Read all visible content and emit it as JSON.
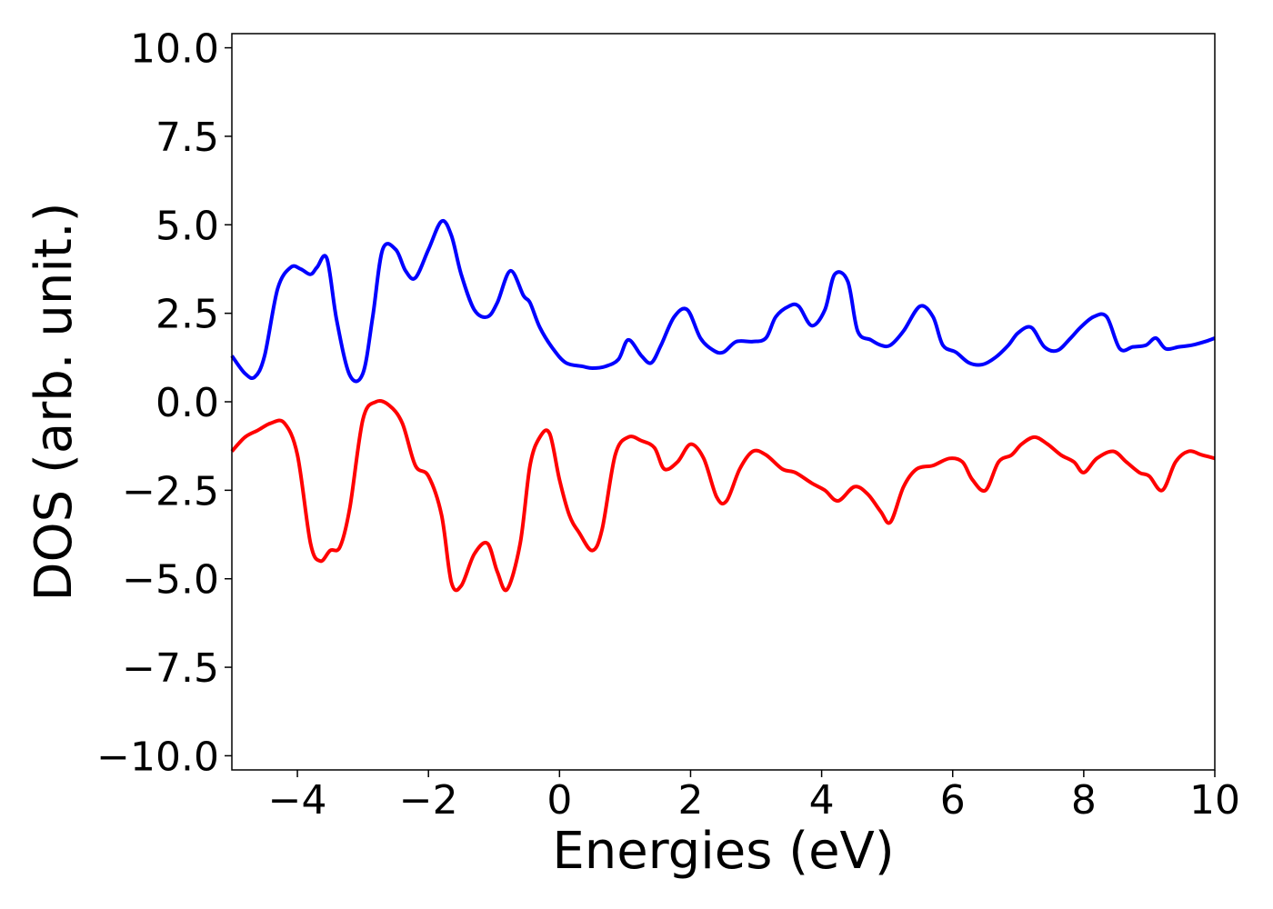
{
  "chart_data": {
    "type": "line",
    "title": "",
    "xlabel": "Energies (eV)",
    "ylabel": "DOS (arb. unit.)",
    "xlim": [
      -5,
      10
    ],
    "ylim": [
      -10.4,
      10.4
    ],
    "xticks": [
      -4,
      -2,
      0,
      2,
      4,
      6,
      8,
      10
    ],
    "xtick_labels": [
      "−4",
      "−2",
      "0",
      "2",
      "4",
      "6",
      "8",
      "10"
    ],
    "yticks": [
      -10.0,
      -7.5,
      -5.0,
      -2.5,
      0.0,
      2.5,
      5.0,
      7.5,
      10.0
    ],
    "ytick_labels": [
      "−10.0",
      "−7.5",
      "−5.0",
      "−2.5",
      "0.0",
      "2.5",
      "5.0",
      "7.5",
      "10.0"
    ],
    "grid": false,
    "legend": "none",
    "series": [
      {
        "color": "#0000ff",
        "x": [
          -5.0,
          -4.8,
          -4.65,
          -4.5,
          -4.3,
          -4.1,
          -3.95,
          -3.8,
          -3.7,
          -3.55,
          -3.4,
          -3.2,
          -3.0,
          -2.85,
          -2.7,
          -2.5,
          -2.35,
          -2.2,
          -2.0,
          -1.8,
          -1.65,
          -1.5,
          -1.3,
          -1.1,
          -0.95,
          -0.75,
          -0.55,
          -0.45,
          -0.3,
          -0.1,
          0.1,
          0.35,
          0.5,
          0.7,
          0.9,
          1.05,
          1.25,
          1.4,
          1.55,
          1.75,
          1.95,
          2.15,
          2.35,
          2.5,
          2.7,
          2.95,
          3.15,
          3.3,
          3.5,
          3.65,
          3.85,
          4.05,
          4.2,
          4.4,
          4.55,
          4.75,
          4.9,
          5.05,
          5.25,
          5.5,
          5.7,
          5.85,
          6.05,
          6.25,
          6.45,
          6.65,
          6.85,
          7.0,
          7.2,
          7.4,
          7.6,
          7.8,
          7.95,
          8.15,
          8.35,
          8.55,
          8.75,
          8.95,
          9.1,
          9.25,
          9.45,
          9.65,
          9.85,
          10.0
        ],
        "y": [
          1.3,
          0.8,
          0.7,
          1.3,
          3.2,
          3.8,
          3.75,
          3.6,
          3.8,
          4.05,
          2.3,
          0.75,
          0.8,
          2.4,
          4.3,
          4.3,
          3.7,
          3.5,
          4.3,
          5.1,
          4.7,
          3.6,
          2.6,
          2.4,
          2.8,
          3.7,
          3.0,
          2.8,
          2.1,
          1.5,
          1.1,
          1.0,
          0.95,
          1.0,
          1.2,
          1.75,
          1.3,
          1.1,
          1.6,
          2.4,
          2.6,
          1.8,
          1.45,
          1.4,
          1.7,
          1.7,
          1.8,
          2.4,
          2.7,
          2.7,
          2.15,
          2.6,
          3.6,
          3.4,
          2.0,
          1.75,
          1.6,
          1.6,
          2.0,
          2.7,
          2.4,
          1.6,
          1.4,
          1.1,
          1.05,
          1.25,
          1.6,
          1.95,
          2.1,
          1.55,
          1.45,
          1.8,
          2.1,
          2.4,
          2.4,
          1.5,
          1.55,
          1.6,
          1.8,
          1.5,
          1.55,
          1.6,
          1.7,
          1.8
        ]
      },
      {
        "color": "#ff0000",
        "x": [
          -5.0,
          -4.8,
          -4.6,
          -4.4,
          -4.2,
          -4.0,
          -3.8,
          -3.65,
          -3.5,
          -3.35,
          -3.2,
          -3.0,
          -2.8,
          -2.6,
          -2.4,
          -2.2,
          -2.0,
          -1.8,
          -1.65,
          -1.5,
          -1.3,
          -1.1,
          -0.95,
          -0.8,
          -0.6,
          -0.45,
          -0.3,
          -0.15,
          0.0,
          0.15,
          0.3,
          0.5,
          0.65,
          0.85,
          1.05,
          1.25,
          1.45,
          1.6,
          1.8,
          2.0,
          2.2,
          2.4,
          2.55,
          2.75,
          2.95,
          3.15,
          3.4,
          3.6,
          3.85,
          4.05,
          4.25,
          4.5,
          4.7,
          4.9,
          5.05,
          5.25,
          5.45,
          5.7,
          5.95,
          6.15,
          6.3,
          6.5,
          6.7,
          6.9,
          7.05,
          7.25,
          7.45,
          7.65,
          7.85,
          8.0,
          8.2,
          8.45,
          8.65,
          8.85,
          9.0,
          9.2,
          9.4,
          9.6,
          9.8,
          10.0
        ],
        "y": [
          -1.4,
          -1.0,
          -0.8,
          -0.6,
          -0.6,
          -1.5,
          -4.0,
          -4.5,
          -4.2,
          -4.1,
          -3.0,
          -0.5,
          0.0,
          -0.1,
          -0.6,
          -1.8,
          -2.1,
          -3.2,
          -5.1,
          -5.2,
          -4.3,
          -4.0,
          -4.8,
          -5.3,
          -4.0,
          -1.8,
          -1.0,
          -0.9,
          -2.2,
          -3.2,
          -3.7,
          -4.2,
          -3.6,
          -1.5,
          -1.0,
          -1.1,
          -1.3,
          -1.9,
          -1.7,
          -1.2,
          -1.6,
          -2.7,
          -2.8,
          -1.9,
          -1.4,
          -1.5,
          -1.9,
          -2.0,
          -2.3,
          -2.5,
          -2.8,
          -2.4,
          -2.6,
          -3.1,
          -3.4,
          -2.4,
          -1.9,
          -1.8,
          -1.6,
          -1.7,
          -2.2,
          -2.5,
          -1.7,
          -1.5,
          -1.2,
          -1.0,
          -1.2,
          -1.5,
          -1.7,
          -2.0,
          -1.6,
          -1.4,
          -1.7,
          -2.0,
          -2.1,
          -2.5,
          -1.7,
          -1.4,
          -1.5,
          -1.6
        ]
      }
    ]
  }
}
